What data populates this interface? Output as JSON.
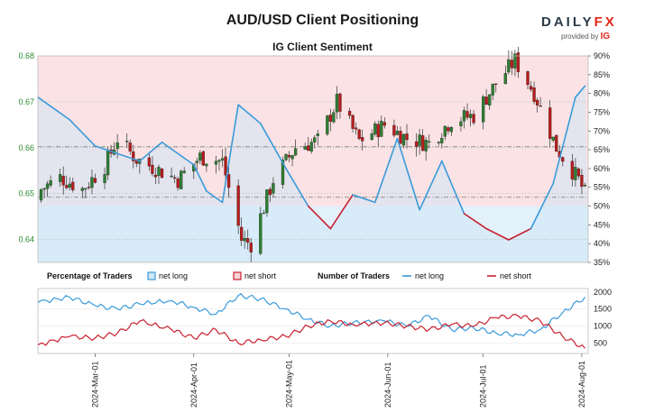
{
  "title": "AUD/USD Client Positioning",
  "subtitle": "IG Client Sentiment",
  "brand": {
    "name_a": "DAILY",
    "name_b": "FX",
    "provided_by": "provided by",
    "provider": "IG"
  },
  "colors": {
    "long": "#3a9ad9",
    "short": "#c8202f",
    "bull_candle": "#2e7d32",
    "bear_candle": "#b71c1c",
    "long_zone": "#e3f1fb",
    "short_zone": "#fbe3e5",
    "price_axis": "#2e8b2e"
  },
  "chart_data": [
    {
      "type": "candlestick",
      "name": "price",
      "x_ticks": [
        "2024-Mar-01",
        "2024-Apr-01",
        "2024-May-01",
        "2024-Jun-01",
        "2024-Jul-01",
        "2024-Aug-01"
      ],
      "price_axis": {
        "ticks": [
          "0.68",
          "0.67",
          "0.66",
          "0.65",
          "0.64"
        ],
        "ylim": [
          0.635,
          0.68
        ]
      },
      "percent_axis": {
        "ticks": [
          "90%",
          "85%",
          "80%",
          "75%",
          "70%",
          "65%",
          "60%",
          "55%",
          "50%",
          "45%",
          "40%",
          "35%"
        ],
        "ylim": [
          35,
          90
        ]
      },
      "reference_lines": [
        0.6602,
        0.6492
      ],
      "close_points": [
        {
          "date": "2024-02-12",
          "close": 0.6505
        },
        {
          "date": "2024-02-19",
          "close": 0.6535
        },
        {
          "date": "2024-02-26",
          "close": 0.651
        },
        {
          "date": "2024-03-04",
          "close": 0.656
        },
        {
          "date": "2024-03-08",
          "close": 0.662
        },
        {
          "date": "2024-03-14",
          "close": 0.6575
        },
        {
          "date": "2024-03-20",
          "close": 0.6555
        },
        {
          "date": "2024-03-27",
          "close": 0.653
        },
        {
          "date": "2024-04-03",
          "close": 0.658
        },
        {
          "date": "2024-04-10",
          "close": 0.657
        },
        {
          "date": "2024-04-16",
          "close": 0.64
        },
        {
          "date": "2024-04-19",
          "close": 0.639
        },
        {
          "date": "2024-04-26",
          "close": 0.653
        },
        {
          "date": "2024-05-03",
          "close": 0.66
        },
        {
          "date": "2024-05-10",
          "close": 0.6615
        },
        {
          "date": "2024-05-16",
          "close": 0.67
        },
        {
          "date": "2024-05-23",
          "close": 0.6615
        },
        {
          "date": "2024-05-31",
          "close": 0.665
        },
        {
          "date": "2024-06-07",
          "close": 0.662
        },
        {
          "date": "2024-06-14",
          "close": 0.661
        },
        {
          "date": "2024-06-21",
          "close": 0.666
        },
        {
          "date": "2024-06-28",
          "close": 0.667
        },
        {
          "date": "2024-07-05",
          "close": 0.674
        },
        {
          "date": "2024-07-11",
          "close": 0.679
        },
        {
          "date": "2024-07-17",
          "close": 0.672
        },
        {
          "date": "2024-07-24",
          "close": 0.66
        },
        {
          "date": "2024-07-31",
          "close": 0.653
        },
        {
          "date": "2024-08-02",
          "close": 0.65
        }
      ],
      "net_long_pct": [
        {
          "date": "2024-02-12",
          "pct": 79
        },
        {
          "date": "2024-02-22",
          "pct": 73
        },
        {
          "date": "2024-03-01",
          "pct": 66
        },
        {
          "date": "2024-03-08",
          "pct": 64
        },
        {
          "date": "2024-03-15",
          "pct": 62
        },
        {
          "date": "2024-03-22",
          "pct": 67
        },
        {
          "date": "2024-04-01",
          "pct": 61
        },
        {
          "date": "2024-04-05",
          "pct": 54
        },
        {
          "date": "2024-04-10",
          "pct": 51
        },
        {
          "date": "2024-04-15",
          "pct": 77
        },
        {
          "date": "2024-04-22",
          "pct": 72
        },
        {
          "date": "2024-04-30",
          "pct": 60
        },
        {
          "date": "2024-05-07",
          "pct": 50
        },
        {
          "date": "2024-05-14",
          "pct": 44
        },
        {
          "date": "2024-05-21",
          "pct": 53
        },
        {
          "date": "2024-05-28",
          "pct": 51
        },
        {
          "date": "2024-06-04",
          "pct": 68
        },
        {
          "date": "2024-06-11",
          "pct": 49
        },
        {
          "date": "2024-06-18",
          "pct": 62
        },
        {
          "date": "2024-06-25",
          "pct": 48
        },
        {
          "date": "2024-07-02",
          "pct": 44
        },
        {
          "date": "2024-07-09",
          "pct": 41
        },
        {
          "date": "2024-07-16",
          "pct": 44
        },
        {
          "date": "2024-07-23",
          "pct": 56
        },
        {
          "date": "2024-07-30",
          "pct": 79
        },
        {
          "date": "2024-08-02",
          "pct": 82
        }
      ]
    },
    {
      "type": "line",
      "name": "positioning",
      "legend_pct": {
        "heading": "Percentage of Traders",
        "long": "net long",
        "short": "net short"
      },
      "legend_num": {
        "heading": "Number of Traders",
        "long": "net long",
        "short": "net short"
      },
      "y_ticks": [
        "2000",
        "1500",
        "1000",
        "500"
      ],
      "ylim": [
        200,
        2100
      ],
      "series": [
        {
          "name": "net long",
          "points": [
            {
              "date": "2024-02-12",
              "v": 1700
            },
            {
              "date": "2024-02-22",
              "v": 1850
            },
            {
              "date": "2024-03-01",
              "v": 1600
            },
            {
              "date": "2024-03-08",
              "v": 1500
            },
            {
              "date": "2024-03-15",
              "v": 1650
            },
            {
              "date": "2024-03-25",
              "v": 1750
            },
            {
              "date": "2024-04-01",
              "v": 1550
            },
            {
              "date": "2024-04-08",
              "v": 1350
            },
            {
              "date": "2024-04-15",
              "v": 1900
            },
            {
              "date": "2024-04-22",
              "v": 1800
            },
            {
              "date": "2024-04-30",
              "v": 1500
            },
            {
              "date": "2024-05-07",
              "v": 1200
            },
            {
              "date": "2024-05-14",
              "v": 1000
            },
            {
              "date": "2024-05-21",
              "v": 1100
            },
            {
              "date": "2024-05-31",
              "v": 1150
            },
            {
              "date": "2024-06-07",
              "v": 1000
            },
            {
              "date": "2024-06-14",
              "v": 1300
            },
            {
              "date": "2024-06-21",
              "v": 900
            },
            {
              "date": "2024-06-28",
              "v": 950
            },
            {
              "date": "2024-07-05",
              "v": 800
            },
            {
              "date": "2024-07-12",
              "v": 750
            },
            {
              "date": "2024-07-19",
              "v": 900
            },
            {
              "date": "2024-07-26",
              "v": 1400
            },
            {
              "date": "2024-08-02",
              "v": 1850
            }
          ]
        },
        {
          "name": "net short",
          "points": [
            {
              "date": "2024-02-12",
              "v": 450
            },
            {
              "date": "2024-02-22",
              "v": 700
            },
            {
              "date": "2024-03-01",
              "v": 650
            },
            {
              "date": "2024-03-08",
              "v": 800
            },
            {
              "date": "2024-03-15",
              "v": 1150
            },
            {
              "date": "2024-03-25",
              "v": 900
            },
            {
              "date": "2024-04-01",
              "v": 650
            },
            {
              "date": "2024-04-08",
              "v": 900
            },
            {
              "date": "2024-04-15",
              "v": 500
            },
            {
              "date": "2024-04-22",
              "v": 600
            },
            {
              "date": "2024-04-30",
              "v": 700
            },
            {
              "date": "2024-05-07",
              "v": 1000
            },
            {
              "date": "2024-05-14",
              "v": 1150
            },
            {
              "date": "2024-05-21",
              "v": 1050
            },
            {
              "date": "2024-05-31",
              "v": 1100
            },
            {
              "date": "2024-06-07",
              "v": 1000
            },
            {
              "date": "2024-06-14",
              "v": 900
            },
            {
              "date": "2024-06-21",
              "v": 1050
            },
            {
              "date": "2024-06-28",
              "v": 1000
            },
            {
              "date": "2024-07-05",
              "v": 1250
            },
            {
              "date": "2024-07-12",
              "v": 1300
            },
            {
              "date": "2024-07-19",
              "v": 1150
            },
            {
              "date": "2024-07-26",
              "v": 700
            },
            {
              "date": "2024-08-02",
              "v": 350
            }
          ]
        }
      ]
    }
  ]
}
